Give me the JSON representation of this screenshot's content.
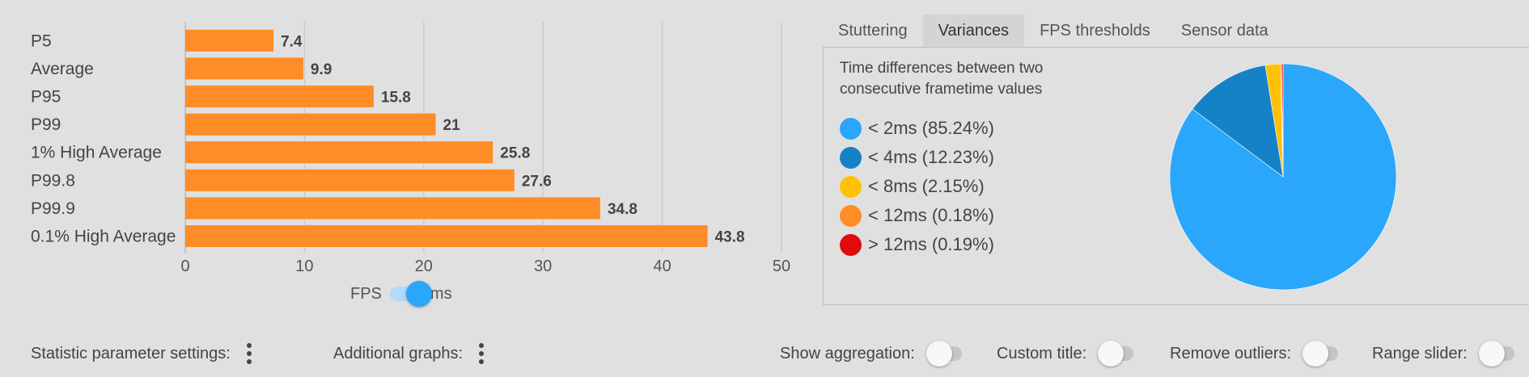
{
  "chart_data": {
    "type": "bar",
    "orientation": "horizontal",
    "categories": [
      "P5",
      "Average",
      "P95",
      "P99",
      "1% High Average",
      "P99.8",
      "P99.9",
      "0.1% High Average"
    ],
    "values": [
      7.4,
      9.9,
      15.8,
      21,
      25.8,
      27.6,
      34.8,
      43.8
    ],
    "value_labels": [
      "7.4",
      "9.9",
      "15.8",
      "21",
      "25.8",
      "27.6",
      "34.8",
      "43.8"
    ],
    "xlim": [
      0,
      50
    ],
    "xticks": [
      "0",
      "10",
      "20",
      "30",
      "40",
      "50"
    ],
    "grid": true,
    "bar_color": "#ff8c26"
  },
  "unit_toggle": {
    "left_label": "FPS",
    "right_label": "ms",
    "selected": "ms"
  },
  "tabs": [
    {
      "label": "Stuttering",
      "active": false
    },
    {
      "label": "Variances",
      "active": true
    },
    {
      "label": "FPS thresholds",
      "active": false
    },
    {
      "label": "Sensor data",
      "active": false
    }
  ],
  "variances": {
    "description_line1": "Time differences between two",
    "description_line2": "consecutive frametime values",
    "pie": {
      "type": "pie",
      "slices": [
        {
          "label": "< 2ms (85.24%)",
          "value": 85.24,
          "color": "#2aa6fb"
        },
        {
          "label": "< 4ms (12.23%)",
          "value": 12.23,
          "color": "#1581c6"
        },
        {
          "label": "< 8ms (2.15%)",
          "value": 2.15,
          "color": "#ffc107"
        },
        {
          "label": "< 12ms (0.18%)",
          "value": 0.18,
          "color": "#ff8c26"
        },
        {
          "label": "> 12ms (0.19%)",
          "value": 0.19,
          "color": "#e00b0b"
        }
      ]
    }
  },
  "bottom": {
    "statistic_settings_label": "Statistic parameter settings:",
    "additional_graphs_label": "Additional graphs:",
    "show_aggregation_label": "Show aggregation:",
    "custom_title_label": "Custom title:",
    "remove_outliers_label": "Remove outliers:",
    "range_slider_label": "Range slider:"
  }
}
